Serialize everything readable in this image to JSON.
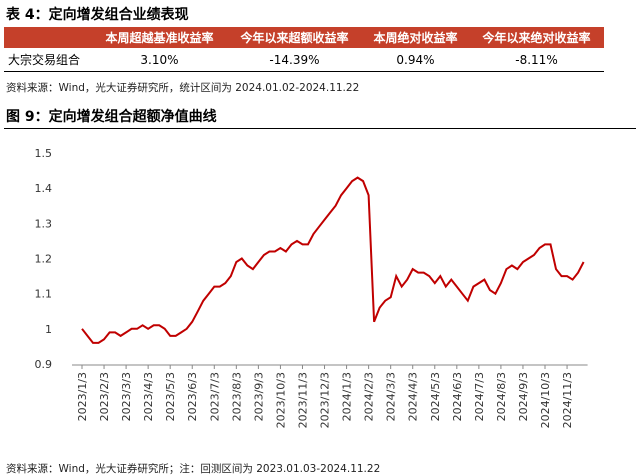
{
  "table": {
    "title": "表 4：定向增发组合业绩表现",
    "headers": [
      "本周超越基准收益率",
      "今年以来超额收益率",
      "本周绝对收益率",
      "今年以来绝对收益率"
    ],
    "rows": [
      [
        "大宗交易组合",
        "3.10%",
        "-14.39%",
        "0.94%",
        "-8.11%"
      ]
    ],
    "source": "资料来源：Wind，光大证券研究所，统计区间为 2024.01.02-2024.11.22"
  },
  "chart_data": {
    "type": "line",
    "title": "图 9：定向增发组合超额净值曲线",
    "categories": [
      "2023/1/3",
      null,
      null,
      null,
      "2023/2/3",
      null,
      null,
      null,
      "2023/3/3",
      null,
      null,
      null,
      "2023/4/3",
      null,
      null,
      null,
      "2023/5/3",
      null,
      null,
      null,
      "2023/6/3",
      null,
      null,
      null,
      "2023/7/3",
      null,
      null,
      null,
      "2023/8/3",
      null,
      null,
      null,
      "2023/9/3",
      null,
      null,
      null,
      "2023/10/3",
      null,
      null,
      null,
      "2023/11/3",
      null,
      null,
      null,
      "2023/12/3",
      null,
      null,
      null,
      "2024/1/3",
      null,
      null,
      null,
      "2024/2/3",
      null,
      null,
      null,
      "2024/3/3",
      null,
      null,
      null,
      "2024/4/3",
      null,
      null,
      null,
      "2024/5/3",
      null,
      null,
      null,
      "2024/6/3",
      null,
      null,
      null,
      "2024/7/3",
      null,
      null,
      null,
      "2024/8/3",
      null,
      null,
      null,
      "2024/9/3",
      null,
      null,
      null,
      "2024/10/3",
      null,
      null,
      null,
      "2024/11/3",
      null,
      null,
      null
    ],
    "values": [
      1.0,
      0.98,
      0.96,
      0.96,
      0.97,
      0.99,
      0.99,
      0.98,
      0.99,
      1.0,
      1.0,
      1.01,
      1.0,
      1.01,
      1.01,
      1.0,
      0.98,
      0.98,
      0.99,
      1.0,
      1.02,
      1.05,
      1.08,
      1.1,
      1.12,
      1.12,
      1.13,
      1.15,
      1.19,
      1.2,
      1.18,
      1.17,
      1.19,
      1.21,
      1.22,
      1.22,
      1.23,
      1.22,
      1.24,
      1.25,
      1.24,
      1.24,
      1.27,
      1.29,
      1.31,
      1.33,
      1.35,
      1.38,
      1.4,
      1.42,
      1.43,
      1.42,
      1.38,
      1.02,
      1.06,
      1.08,
      1.09,
      1.15,
      1.12,
      1.14,
      1.17,
      1.16,
      1.16,
      1.15,
      1.13,
      1.15,
      1.12,
      1.14,
      1.12,
      1.1,
      1.08,
      1.12,
      1.13,
      1.14,
      1.11,
      1.1,
      1.13,
      1.17,
      1.18,
      1.17,
      1.19,
      1.2,
      1.21,
      1.23,
      1.24,
      1.24,
      1.17,
      1.15,
      1.15,
      1.14,
      1.16,
      1.19
    ],
    "color": "#c00000",
    "ylim": [
      0.9,
      1.5
    ],
    "yticks": [
      0.9,
      1,
      1.1,
      1.2,
      1.3,
      1.4,
      1.5
    ],
    "source": "资料来源：Wind，光大证券研究所；注：回测区间为 2023.01.03-2024.11.22"
  }
}
